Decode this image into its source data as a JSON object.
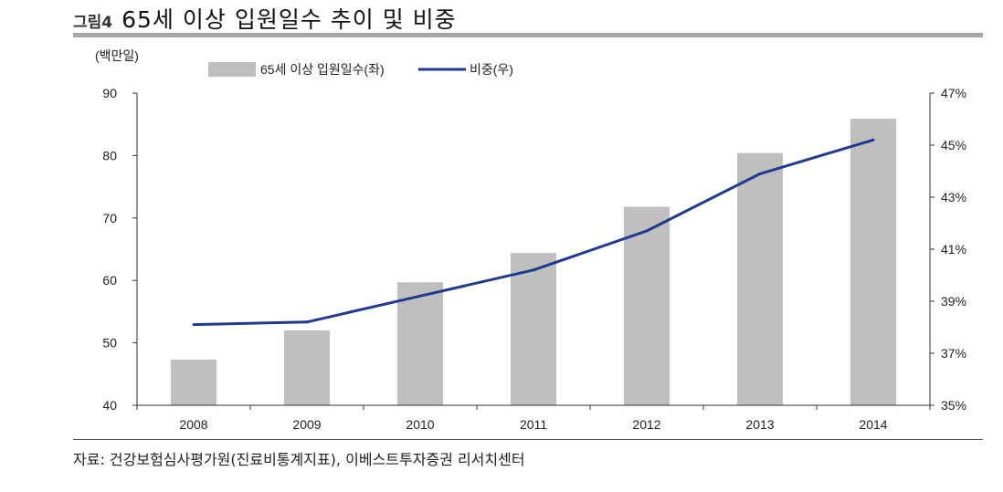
{
  "header": {
    "figure_label": "그림4",
    "title": "65세 이상 입원일수 추이 및 비중"
  },
  "source": "자료: 건강보험심사평가원(진료비통계지표), 이베스트투자증권 리서치센터",
  "colors": {
    "bar": "#bfbfbf",
    "line": "#1f3a8f",
    "axis": "#333333"
  },
  "chart_data": {
    "type": "bar",
    "title": "65세 이상 입원일수 추이 및 비중",
    "categories": [
      "2008",
      "2009",
      "2010",
      "2011",
      "2012",
      "2013",
      "2014"
    ],
    "series": [
      {
        "name": "65세 이상 입원일수(좌)",
        "type": "bar",
        "axis": "left",
        "values": [
          47.3,
          52.0,
          59.7,
          64.4,
          71.8,
          80.4,
          85.9
        ]
      },
      {
        "name": "비중(우)",
        "type": "line",
        "axis": "right",
        "values": [
          38.1,
          38.2,
          39.2,
          40.2,
          41.7,
          43.9,
          45.2
        ]
      }
    ],
    "ylabel": "(백만일)",
    "ylim": [
      40,
      90
    ],
    "yticks": [
      "90",
      "80",
      "70",
      "60",
      "50",
      "40"
    ],
    "y2lim": [
      35,
      47
    ],
    "y2ticks": [
      "47%",
      "45%",
      "43%",
      "41%",
      "39%",
      "37%",
      "35%"
    ],
    "legend_position": "top-center"
  }
}
